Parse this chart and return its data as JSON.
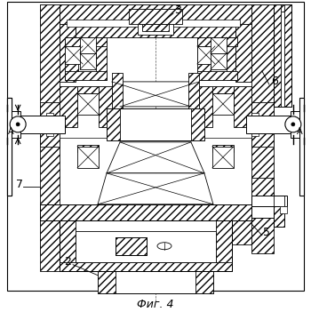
{
  "title": "Фиг. 4",
  "background_color": "#ffffff",
  "line_color": "#1a1a1a",
  "label_fontsize": 9,
  "hatch_density": "////"
}
